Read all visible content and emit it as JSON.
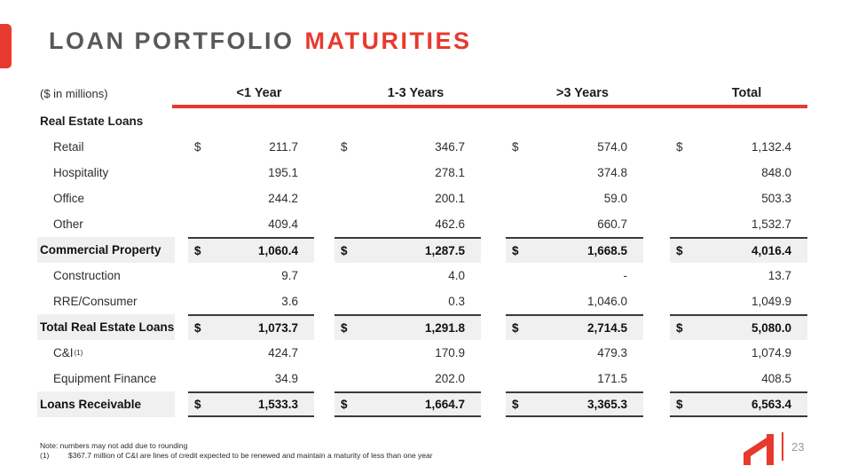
{
  "colors": {
    "accent": "#e8392e",
    "title_gray": "#58595b",
    "text": "#2e2e2e",
    "shade": "#f0f0f0",
    "border": "#3a3a3a",
    "page_gray": "#9b9b9b"
  },
  "title": {
    "main": "LOAN PORTFOLIO",
    "accent": "MATURITIES"
  },
  "table": {
    "unit_label": "($ in millions)",
    "headers": [
      "<1 Year",
      "1-3 Years",
      ">3 Years",
      "Total"
    ],
    "rows": [
      {
        "label": "Real Estate Loans",
        "style": "normal section",
        "indent": false,
        "dollar": "",
        "values": [
          "",
          "",
          "",
          ""
        ]
      },
      {
        "label": "Retail",
        "style": "normal",
        "indent": true,
        "dollar": "$",
        "values": [
          "211.7",
          "346.7",
          "574.0",
          "1,132.4"
        ]
      },
      {
        "label": "Hospitality",
        "style": "normal",
        "indent": true,
        "dollar": "",
        "values": [
          "195.1",
          "278.1",
          "374.8",
          "848.0"
        ]
      },
      {
        "label": "Office",
        "style": "normal",
        "indent": true,
        "dollar": "",
        "values": [
          "244.2",
          "200.1",
          "59.0",
          "503.3"
        ]
      },
      {
        "label": "Other",
        "style": "normal",
        "indent": true,
        "dollar": "",
        "values": [
          "409.4",
          "462.6",
          "660.7",
          "1,532.7"
        ]
      },
      {
        "label": "Commercial Property",
        "style": "total",
        "indent": false,
        "dollar": "$",
        "values": [
          "1,060.4",
          "1,287.5",
          "1,668.5",
          "4,016.4"
        ]
      },
      {
        "label": "Construction",
        "style": "normal",
        "indent": true,
        "dollar": "",
        "values": [
          "9.7",
          "4.0",
          "-",
          "13.7"
        ]
      },
      {
        "label": "RRE/Consumer",
        "style": "normal",
        "indent": true,
        "dollar": "",
        "values": [
          "3.6",
          "0.3",
          "1,046.0",
          "1,049.9"
        ]
      },
      {
        "label": "Total Real Estate Loans",
        "style": "total",
        "indent": false,
        "dollar": "$",
        "values": [
          "1,073.7",
          "1,291.8",
          "2,714.5",
          "5,080.0"
        ]
      },
      {
        "label": "C&I",
        "sup": "(1)",
        "style": "normal",
        "indent": true,
        "dollar": "",
        "values": [
          "424.7",
          "170.9",
          "479.3",
          "1,074.9"
        ]
      },
      {
        "label": "Equipment Finance",
        "style": "normal",
        "indent": true,
        "dollar": "",
        "values": [
          "34.9",
          "202.0",
          "171.5",
          "408.5"
        ]
      },
      {
        "label": "Loans Receivable",
        "style": "total bb",
        "indent": false,
        "dollar": "$",
        "values": [
          "1,533.3",
          "1,664.7",
          "3,365.3",
          "6,563.4"
        ]
      }
    ]
  },
  "notes": {
    "line1": "Note: numbers may not add due to rounding",
    "line2_ref": "(1)",
    "line2_text": "$367.7 million of C&I are lines of credit expected to be renewed and maintain a maturity of less than one year"
  },
  "footer": {
    "page_number": "23"
  }
}
